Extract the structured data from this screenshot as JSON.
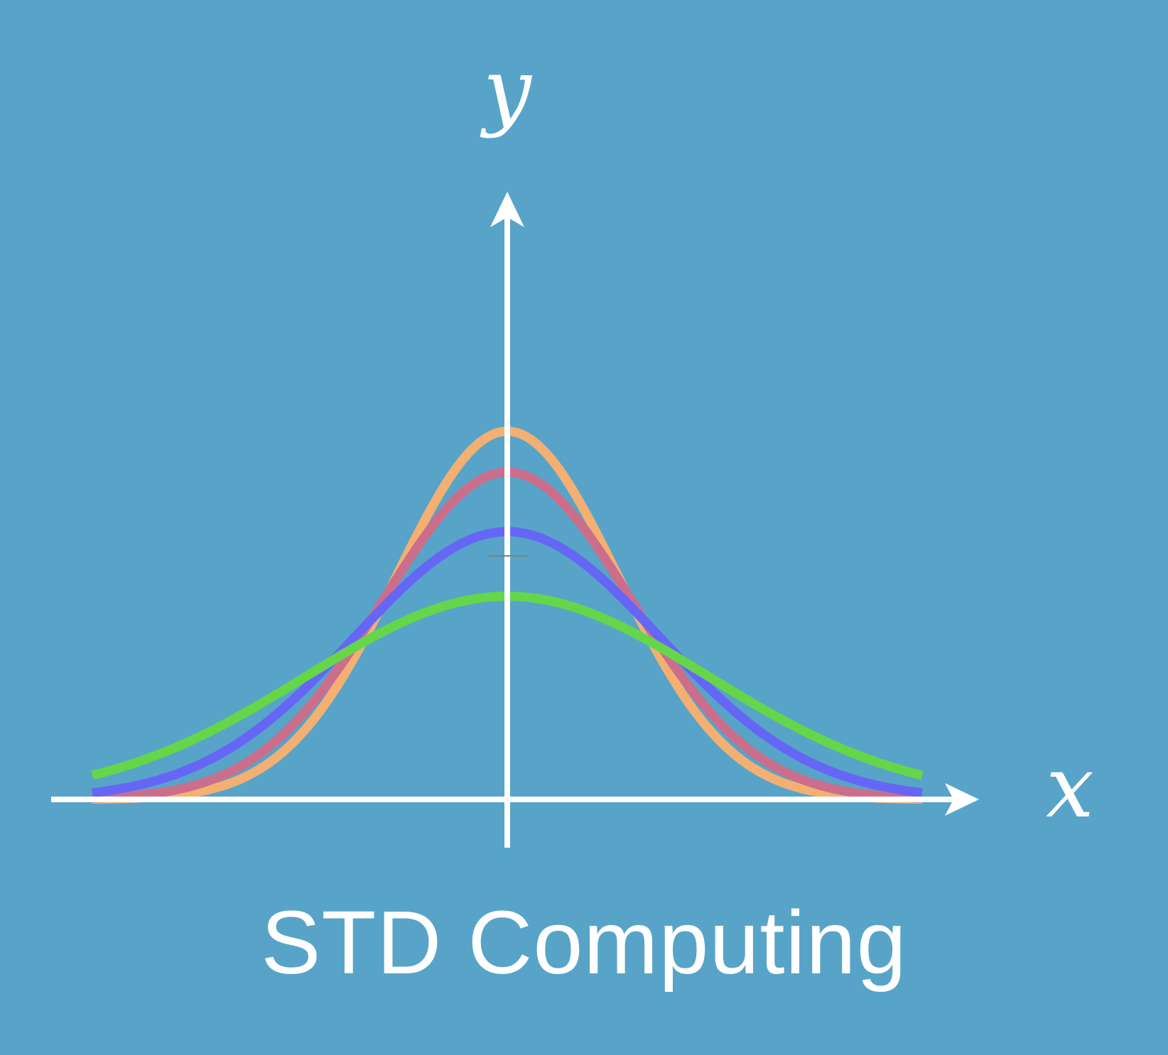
{
  "background_color": "#57a4c8",
  "axes": {
    "x_label": "x",
    "y_label": "y",
    "axis_color": "#ffffff"
  },
  "caption": "STD Computing",
  "curves": [
    {
      "color": "#f3b072",
      "sigma": 0.8
    },
    {
      "color": "#cb6e8c",
      "sigma": 0.9
    },
    {
      "color": "#6666f6",
      "sigma": 1.1
    },
    {
      "color": "#65d64a",
      "sigma": 1.45
    }
  ]
}
